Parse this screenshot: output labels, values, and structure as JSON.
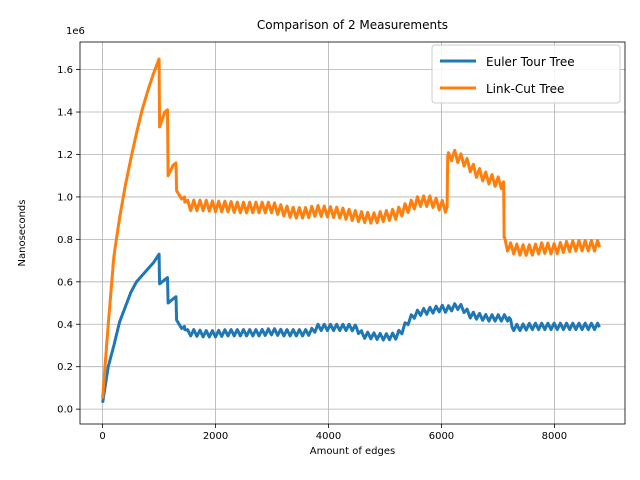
{
  "chart_data": {
    "type": "line",
    "title": "Comparison of 2 Measurements",
    "xlabel": "Amount of edges",
    "ylabel": "Nanoseconds",
    "y_offset_label": "1e6",
    "xlim": [
      -400,
      9250
    ],
    "ylim": [
      -0.07,
      1.73
    ],
    "x_ticks": [
      0,
      2000,
      4000,
      6000,
      8000
    ],
    "x_tick_labels": [
      "0",
      "2000",
      "4000",
      "6000",
      "8000"
    ],
    "y_ticks": [
      0.0,
      0.2,
      0.4,
      0.6,
      0.8,
      1.0,
      1.2,
      1.4,
      1.6
    ],
    "y_tick_labels": [
      "0.0",
      "0.2",
      "0.4",
      "0.6",
      "0.8",
      "1.0",
      "1.2",
      "1.4",
      "1.6"
    ],
    "grid": true,
    "legend_position": "top-right",
    "series": [
      {
        "name": "Euler Tour Tree",
        "color": "#1f77b4",
        "x": [
          0,
          100,
          200,
          300,
          400,
          500,
          600,
          700,
          800,
          900,
          1000,
          1010,
          1100,
          1150,
          1160,
          1250,
          1300,
          1310,
          1400,
          1450,
          1500,
          1600,
          1800,
          2000,
          2200,
          2400,
          2600,
          2800,
          3000,
          3200,
          3400,
          3600,
          3700,
          3800,
          4000,
          4200,
          4400,
          4500,
          4600,
          4800,
          5000,
          5200,
          5300,
          5400,
          5500,
          5600,
          5800,
          6000,
          6100,
          6200,
          6300,
          6400,
          6500,
          6600,
          6800,
          7000,
          7200,
          7250,
          7400,
          7600,
          7800,
          8000,
          8200,
          8400,
          8600,
          8800
        ],
        "y": [
          0.03,
          0.2,
          0.3,
          0.41,
          0.48,
          0.55,
          0.6,
          0.63,
          0.66,
          0.69,
          0.73,
          0.59,
          0.61,
          0.62,
          0.5,
          0.52,
          0.53,
          0.42,
          0.38,
          0.39,
          0.36,
          0.36,
          0.355,
          0.355,
          0.36,
          0.36,
          0.36,
          0.36,
          0.365,
          0.36,
          0.36,
          0.36,
          0.365,
          0.385,
          0.385,
          0.385,
          0.385,
          0.38,
          0.35,
          0.345,
          0.34,
          0.345,
          0.37,
          0.41,
          0.44,
          0.455,
          0.465,
          0.475,
          0.47,
          0.48,
          0.485,
          0.47,
          0.445,
          0.44,
          0.43,
          0.43,
          0.43,
          0.385,
          0.385,
          0.39,
          0.39,
          0.39,
          0.39,
          0.39,
          0.39,
          0.39
        ],
        "oscillation": 0.03
      },
      {
        "name": "Link-Cut Tree",
        "color": "#ff7f0e",
        "x": [
          0,
          100,
          200,
          300,
          400,
          500,
          600,
          700,
          800,
          900,
          1000,
          1010,
          1100,
          1150,
          1160,
          1250,
          1300,
          1310,
          1400,
          1450,
          1500,
          1600,
          1800,
          2000,
          2200,
          2400,
          2600,
          2800,
          3000,
          3200,
          3400,
          3600,
          3800,
          4000,
          4200,
          4400,
          4600,
          4800,
          5000,
          5200,
          5400,
          5600,
          5800,
          6000,
          6100,
          6110,
          6200,
          6400,
          6600,
          6800,
          7000,
          7100,
          7110,
          7200,
          7400,
          7600,
          7800,
          8000,
          8200,
          8400,
          8600,
          8800
        ],
        "y": [
          0.05,
          0.4,
          0.72,
          0.9,
          1.05,
          1.18,
          1.3,
          1.41,
          1.5,
          1.58,
          1.65,
          1.33,
          1.4,
          1.41,
          1.1,
          1.15,
          1.16,
          1.03,
          0.99,
          1.0,
          0.96,
          0.96,
          0.96,
          0.955,
          0.955,
          0.95,
          0.95,
          0.95,
          0.95,
          0.935,
          0.925,
          0.925,
          0.935,
          0.93,
          0.925,
          0.915,
          0.905,
          0.9,
          0.91,
          0.92,
          0.95,
          0.98,
          0.98,
          0.96,
          0.95,
          1.18,
          1.2,
          1.17,
          1.12,
          1.09,
          1.07,
          1.06,
          0.79,
          0.76,
          0.75,
          0.75,
          0.76,
          0.755,
          0.765,
          0.77,
          0.77,
          0.77
        ],
        "oscillation": 0.05
      }
    ]
  }
}
